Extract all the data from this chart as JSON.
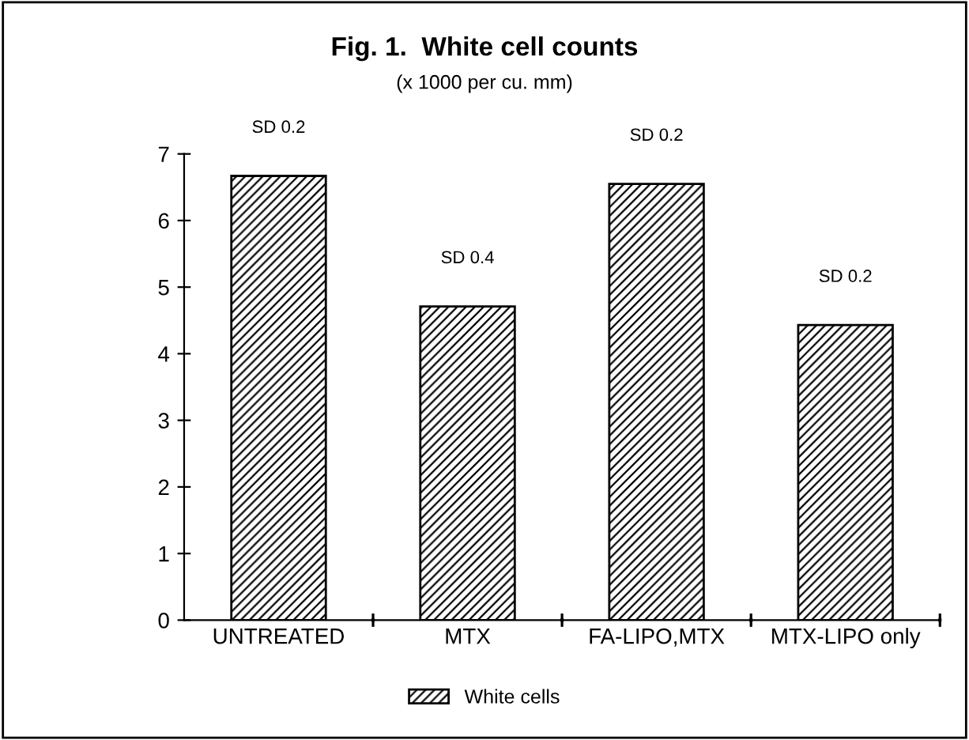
{
  "chart_data": {
    "type": "bar",
    "title": "Fig. 1.  White cell counts",
    "subtitle": "(x 1000 per cu. mm)",
    "categories": [
      "UNTREATED",
      "MTX",
      "FA-LIPO,MTX",
      "MTX-LIPO only"
    ],
    "series": [
      {
        "name": "White cells",
        "color": "#000000",
        "values": [
          6.67,
          4.71,
          6.55,
          4.43
        ]
      }
    ],
    "annotations": [
      {
        "text": "SD 0.2",
        "x": "UNTREATED",
        "y": 6.67
      },
      {
        "text": "SD 0.4",
        "x": "MTX",
        "y": 4.71
      },
      {
        "text": "SD 0.2",
        "x": "FA-LIPO,MTX",
        "y": 6.55
      },
      {
        "text": "SD 0.2",
        "x": "MTX-LIPO only",
        "y": 4.43
      }
    ],
    "ylim": [
      0,
      7
    ],
    "yticks": [
      0,
      1,
      2,
      3,
      4,
      5,
      6,
      7
    ],
    "grid": false,
    "legend": "bottom"
  }
}
